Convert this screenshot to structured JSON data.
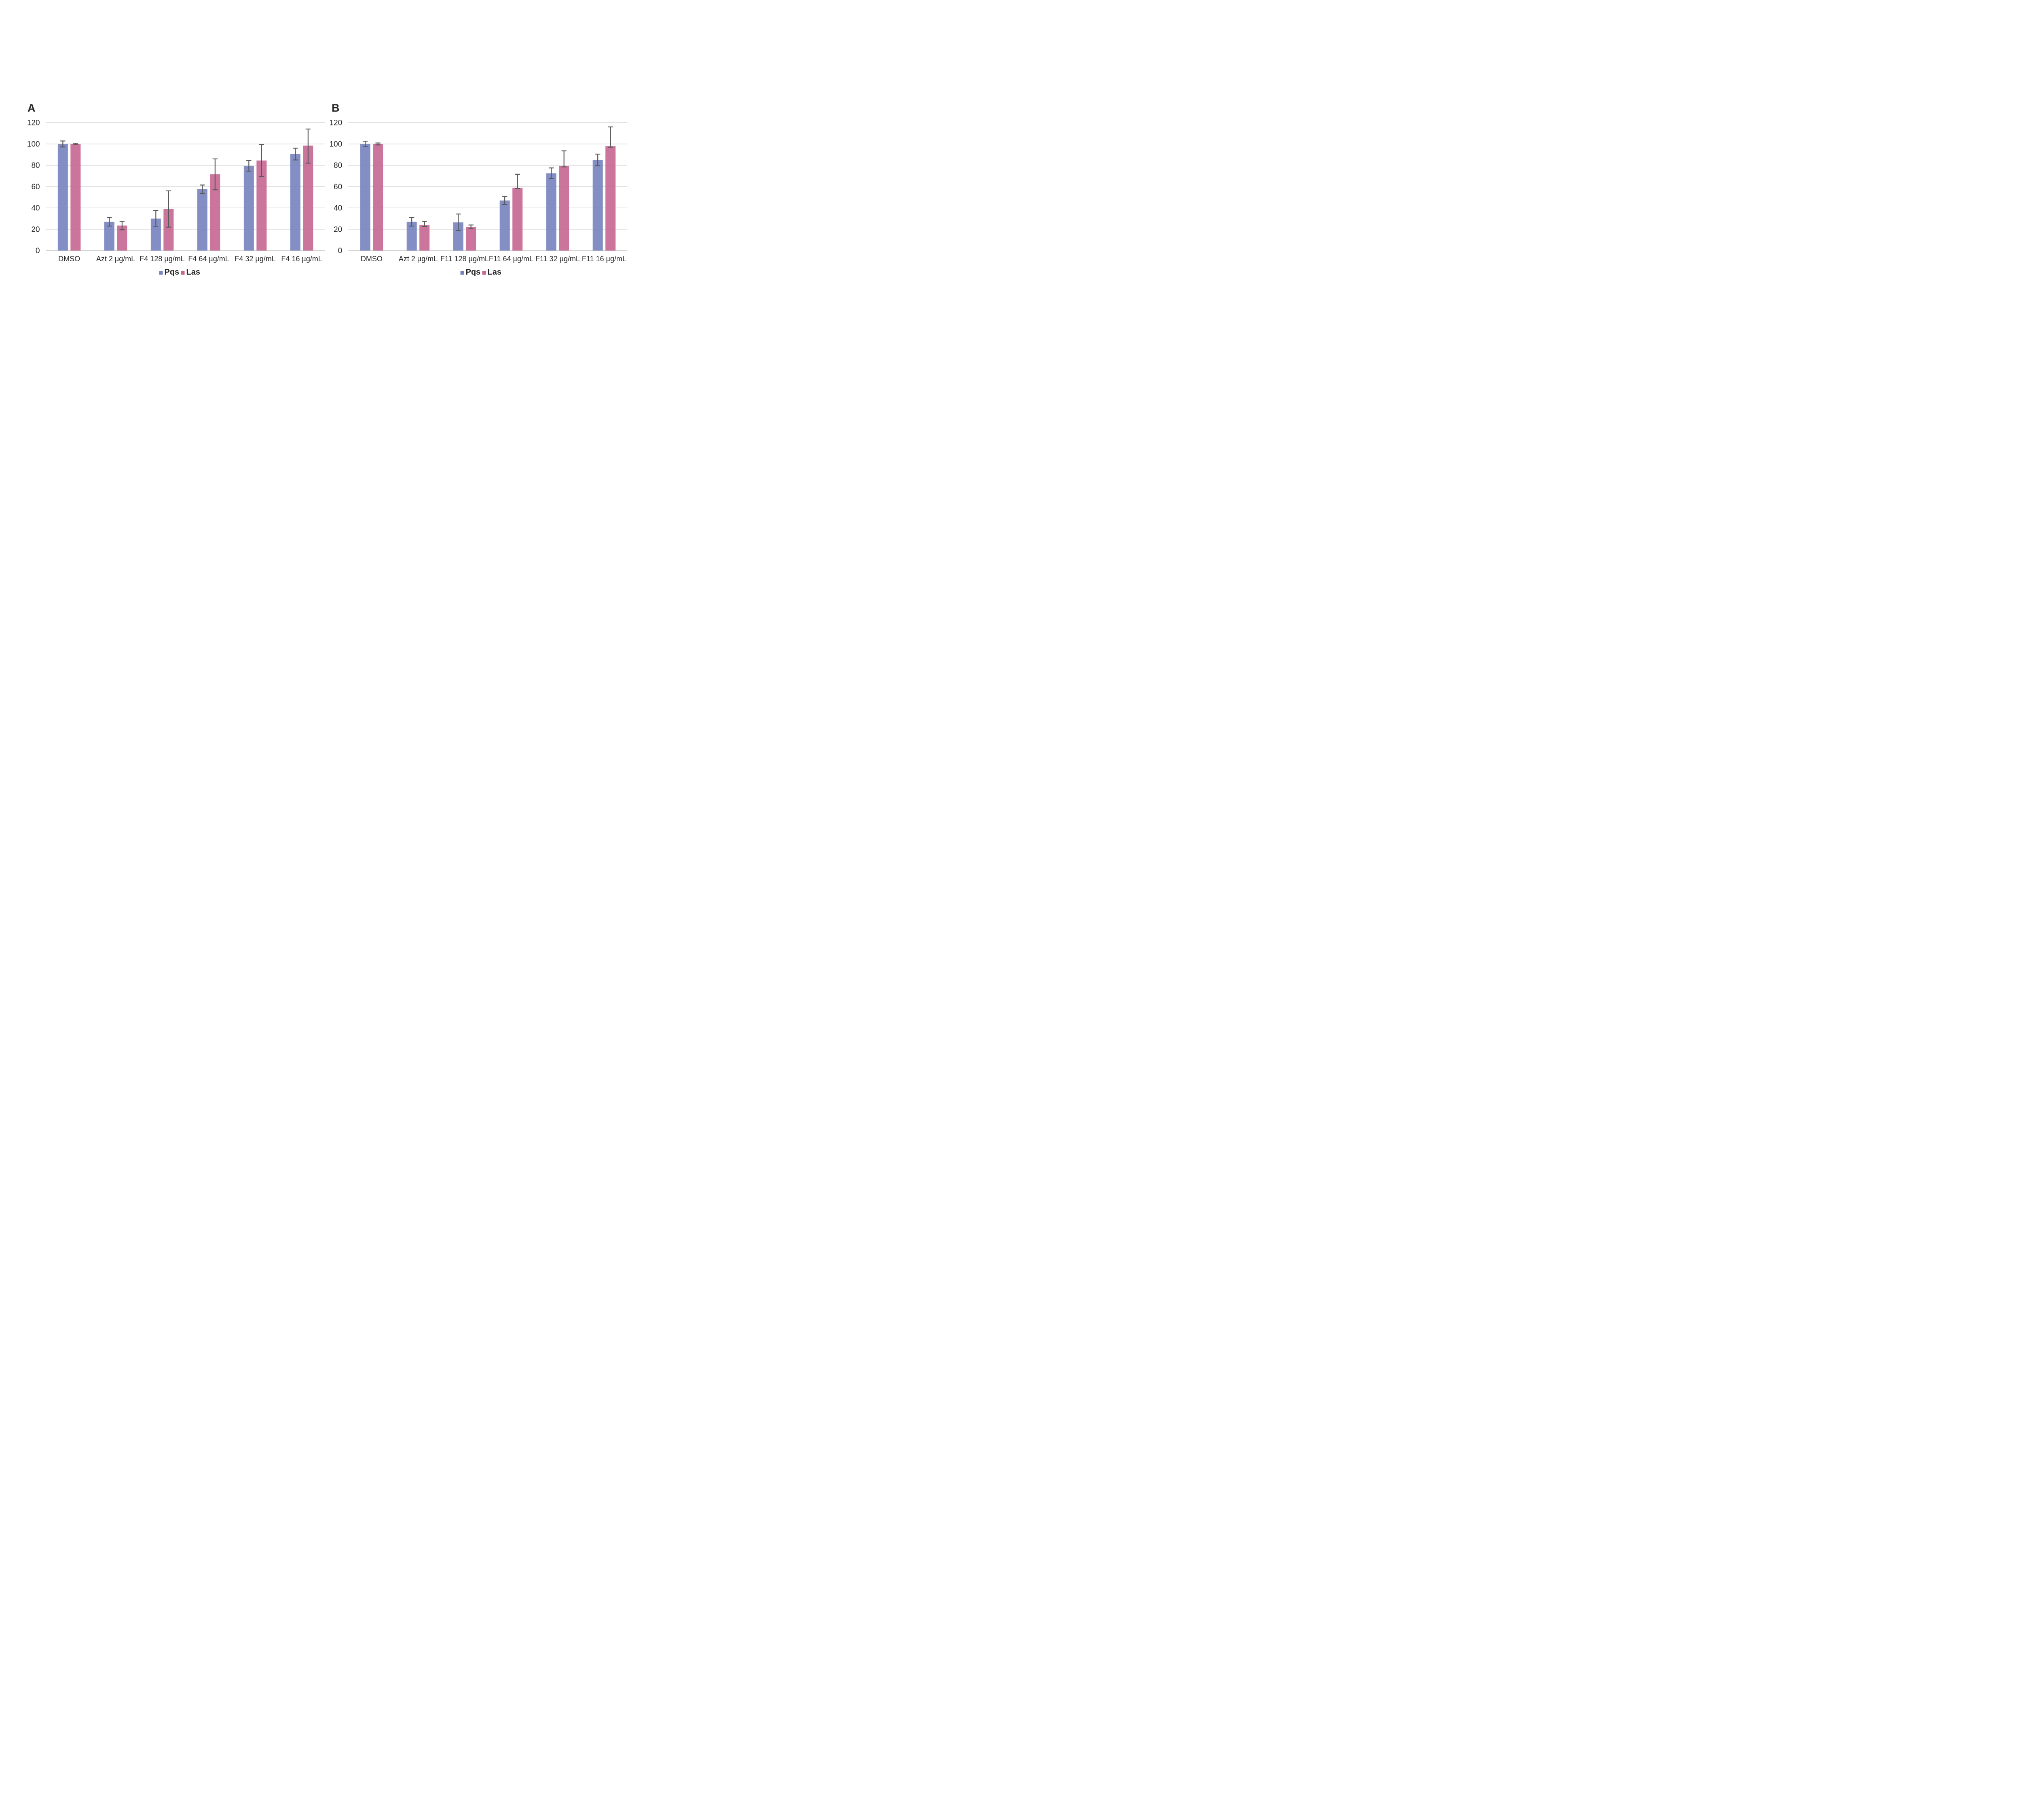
{
  "figure": {
    "background": "#FFFFFF",
    "text_color": "#262626",
    "gridline_color": "#D9D9D9",
    "axis_line_color": "#D4D4D4",
    "error_bar_color": "#595959"
  },
  "legend_labels": [
    "Pqs",
    "Las"
  ],
  "chart_data": [
    {
      "type": "bar",
      "panel": "A",
      "title": "",
      "xlabel": "",
      "ylabel": "",
      "ylim": [
        0,
        120
      ],
      "yticks": [
        0,
        20,
        40,
        60,
        80,
        100,
        120
      ],
      "grid": true,
      "legend_position": "bottom",
      "categories": [
        "DMSO",
        "Azt 2 µg/mL",
        "F4 128 µg/mL",
        "F4 64 µg/mL",
        "F4 32 µg/mL",
        "F4 16 µg/mL"
      ],
      "series": [
        {
          "name": "Pqs",
          "color": "#7583BE",
          "values": [
            100,
            27,
            30,
            57.5,
            79.5,
            90.5
          ],
          "err_up": [
            2.8,
            4,
            7.7,
            4,
            5,
            5.5
          ],
          "err_down": [
            2.8,
            4,
            7.7,
            4,
            5,
            5.5
          ]
        },
        {
          "name": "Las",
          "color": "#C76691",
          "values": [
            100,
            23.5,
            39,
            71.5,
            84.5,
            98.5
          ],
          "err_up": [
            0.7,
            4,
            17,
            14.5,
            15,
            15.5
          ],
          "err_down": [
            0.7,
            4,
            17,
            14.5,
            15,
            16.5
          ]
        }
      ]
    },
    {
      "type": "bar",
      "panel": "B",
      "title": "",
      "xlabel": "",
      "ylabel": "",
      "ylim": [
        0,
        120
      ],
      "yticks": [
        0,
        20,
        40,
        60,
        80,
        100,
        120
      ],
      "grid": true,
      "legend_position": "bottom",
      "categories": [
        "DMSO",
        "Azt 2 µg/mL",
        "F11 128 µg/mL",
        "F11 64 µg/mL",
        "F11 32 µg/mL",
        "F11 16 µg/mL"
      ],
      "series": [
        {
          "name": "Pqs",
          "color": "#7583BE",
          "values": [
            100,
            27,
            26.5,
            47,
            72.5,
            85
          ],
          "err_up": [
            2.6,
            4,
            7.8,
            3.8,
            5,
            5.5
          ],
          "err_down": [
            2.6,
            4,
            7.8,
            3.8,
            5,
            5.5
          ]
        },
        {
          "name": "Las",
          "color": "#C76691",
          "values": [
            100,
            24,
            22,
            59,
            79.5,
            98
          ],
          "err_up": [
            0.9,
            3.5,
            2,
            12.6,
            14,
            18
          ],
          "err_down": [
            0.9,
            1.5,
            1.5,
            0.7,
            1,
            1
          ]
        }
      ]
    }
  ]
}
